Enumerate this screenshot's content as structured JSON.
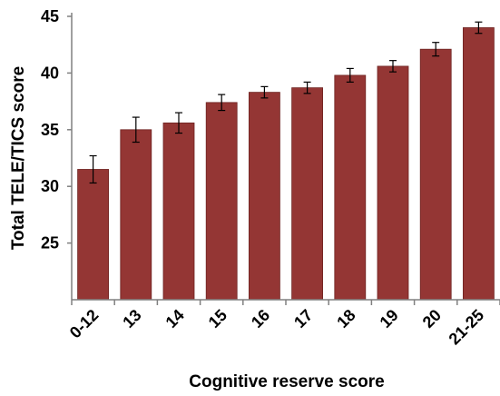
{
  "chart_data": {
    "type": "bar",
    "title": "",
    "xlabel": "Cognitive reserve score",
    "ylabel": "Total TELE/TICS score",
    "categories": [
      "0-12",
      "13",
      "14",
      "15",
      "16",
      "17",
      "18",
      "19",
      "20",
      "21-25"
    ],
    "values": [
      31.5,
      35.0,
      35.6,
      37.4,
      38.3,
      38.7,
      39.8,
      40.6,
      42.1,
      44.0
    ],
    "errors": [
      1.2,
      1.1,
      0.9,
      0.7,
      0.5,
      0.5,
      0.6,
      0.5,
      0.6,
      0.5
    ],
    "ylim": [
      20,
      45
    ],
    "yticks": [
      25,
      30,
      35,
      40,
      45
    ],
    "grid": false,
    "colors": {
      "bar": "#943634",
      "bar_edge": "#6e2321",
      "axis": "#808080",
      "error": "#000000"
    }
  }
}
